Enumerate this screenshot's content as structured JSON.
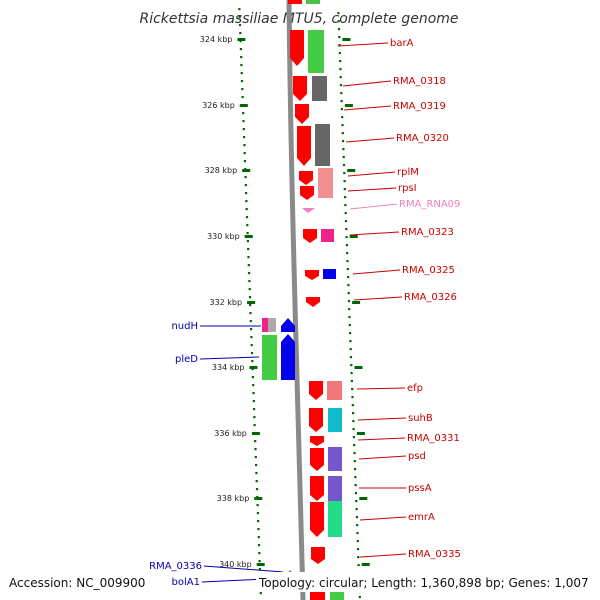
{
  "title": "Rickettsia massiliae MTU5, complete genome",
  "footer": {
    "accession": "Accession: NC_009900",
    "topology": "Topology: circular; Length: 1,360,898 bp; Genes: 1,007"
  },
  "colors": {
    "cds": "#ff0000",
    "minus_cds": "#0000ff",
    "rna": "#f080c0",
    "plus_label": "#cc0000",
    "minus_label": "#0000aa",
    "tick": "#006600",
    "backbone": "#808080"
  },
  "ticks": [
    "324 kbp",
    "326 kbp",
    "328 kbp",
    "330 kbp",
    "332 kbp",
    "334 kbp",
    "336 kbp",
    "338 kbp",
    "340 kbp"
  ],
  "genes_plus": [
    {
      "name": "barA"
    },
    {
      "name": "RMA_0318"
    },
    {
      "name": "RMA_0319"
    },
    {
      "name": "RMA_0320"
    },
    {
      "name": "rplM"
    },
    {
      "name": "rpsI"
    },
    {
      "name": "RMA_RNA09"
    },
    {
      "name": "RMA_0323"
    },
    {
      "name": "RMA_0325"
    },
    {
      "name": "RMA_0326"
    },
    {
      "name": "efp"
    },
    {
      "name": "suhB"
    },
    {
      "name": "RMA_0331"
    },
    {
      "name": "psd"
    },
    {
      "name": "pssA"
    },
    {
      "name": "emrA"
    },
    {
      "name": "RMA_0335"
    }
  ],
  "genes_minus": [
    {
      "name": "nudH"
    },
    {
      "name": "pleD"
    },
    {
      "name": "RMA_0336"
    },
    {
      "name": "bolA1"
    }
  ]
}
